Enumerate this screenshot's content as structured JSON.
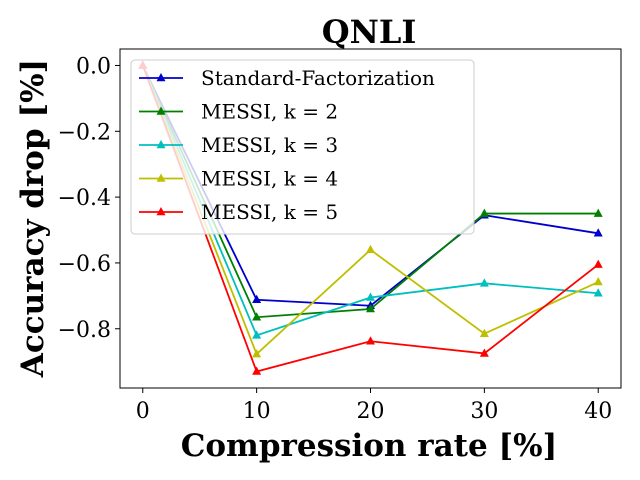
{
  "chart_data": {
    "type": "line",
    "title": "QNLI",
    "xlabel": "Compression rate [%]",
    "ylabel": "Accuracy drop [%]",
    "x": [
      0,
      10,
      20,
      30,
      40
    ],
    "xticks": [
      0,
      10,
      20,
      30,
      40
    ],
    "xtick_labels": [
      "0",
      "10",
      "20",
      "30",
      "40"
    ],
    "yticks": [
      0.0,
      -0.2,
      -0.4,
      -0.6,
      -0.8
    ],
    "ytick_labels": [
      "0.0",
      "−0.2",
      "−0.4",
      "−0.6",
      "−0.8"
    ],
    "xlim": [
      -2,
      42
    ],
    "ylim": [
      -0.98,
      0.05
    ],
    "grid": false,
    "legend_position": "top-left",
    "marker": "triangle",
    "series": [
      {
        "name": "Standard-Factorization",
        "color": "#0000cc",
        "values": [
          0.0,
          -0.712,
          -0.73,
          -0.455,
          -0.51
        ]
      },
      {
        "name": "MESSI, k = 2",
        "color": "#008000",
        "values": [
          0.0,
          -0.765,
          -0.74,
          -0.45,
          -0.45
        ]
      },
      {
        "name": "MESSI, k = 3",
        "color": "#00bfbf",
        "values": [
          0.0,
          -0.82,
          -0.705,
          -0.662,
          -0.692
        ]
      },
      {
        "name": "MESSI, k = 4",
        "color": "#bfbf00",
        "values": [
          0.0,
          -0.877,
          -0.56,
          -0.815,
          -0.658
        ]
      },
      {
        "name": "MESSI, k = 5",
        "color": "#ff0000",
        "values": [
          0.0,
          -0.93,
          -0.838,
          -0.875,
          -0.605
        ]
      }
    ]
  }
}
